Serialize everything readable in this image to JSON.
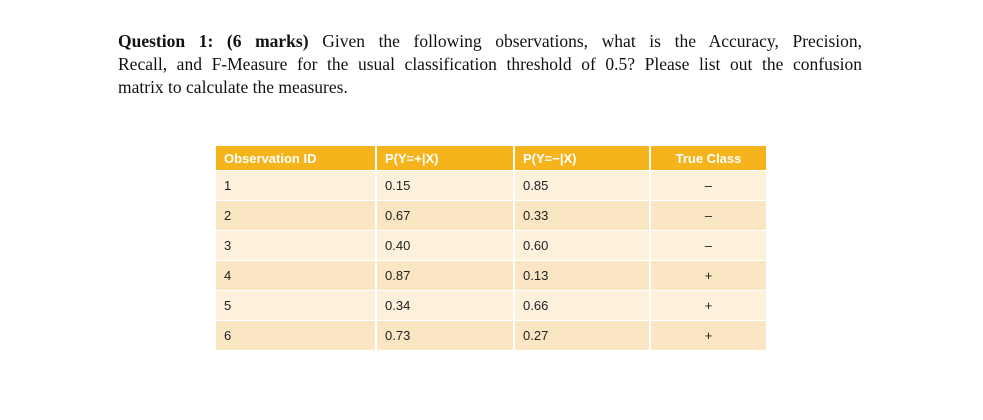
{
  "question": {
    "label": "Question 1: (6 marks)",
    "lines": [
      "Given the following observations, what is the Accuracy, Precision,",
      "Recall, and F-Measure for the usual classification threshold of 0.5? Please list out the confusion",
      "matrix to calculate the measures."
    ]
  },
  "table": {
    "headers": [
      "Observation ID",
      "P(Y=+|X)",
      "P(Y=−|X)",
      "True Class"
    ],
    "rows": [
      [
        "1",
        "0.15",
        "0.85",
        "–"
      ],
      [
        "2",
        "0.67",
        "0.33",
        "–"
      ],
      [
        "3",
        "0.40",
        "0.60",
        "–"
      ],
      [
        "4",
        "0.87",
        "0.13",
        "+"
      ],
      [
        "5",
        "0.34",
        "0.66",
        "+"
      ],
      [
        "6",
        "0.73",
        "0.27",
        "+"
      ]
    ]
  }
}
